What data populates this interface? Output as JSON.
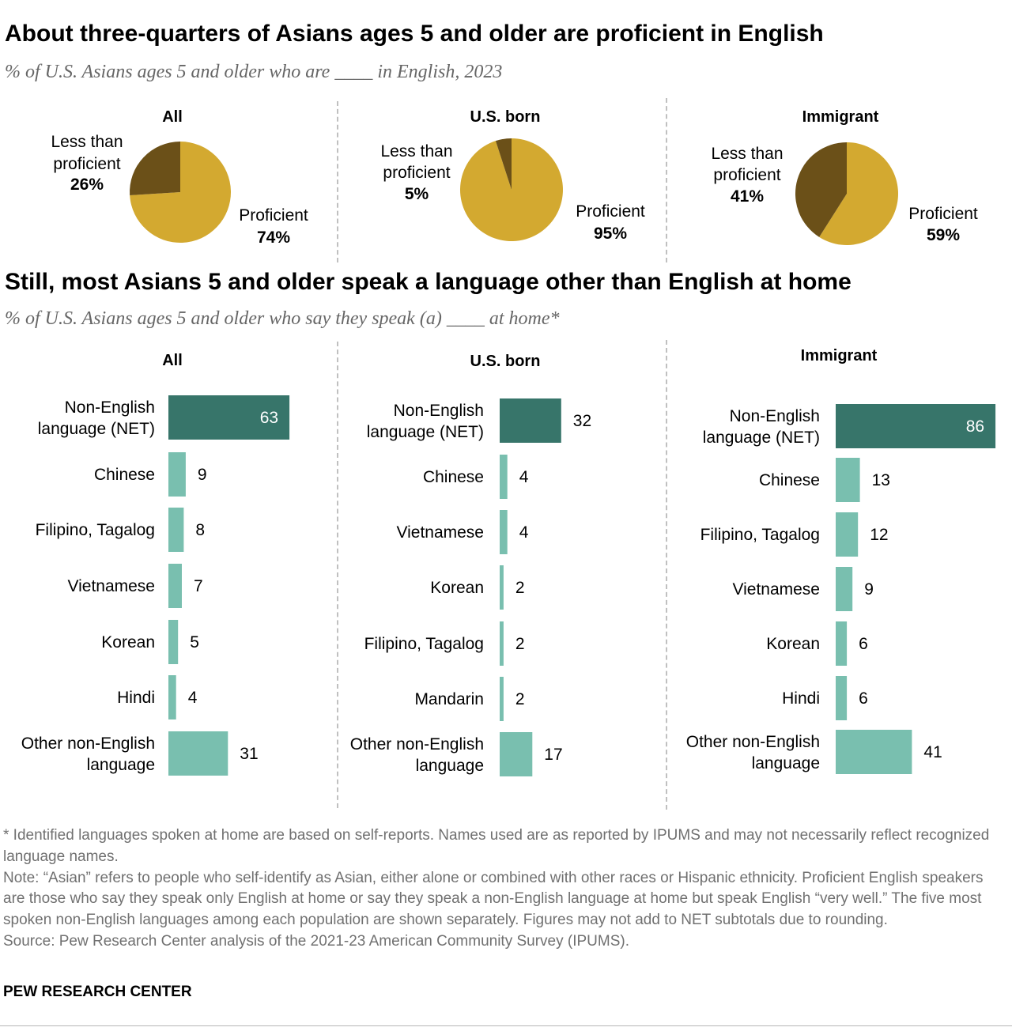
{
  "title1": "About three-quarters of Asians ages 5 and older are proficient in English",
  "subtitle1": "% of U.S. Asians ages 5 and older who are ____ in English, 2023",
  "title2": "Still, most Asians 5 and older speak a language other than English at home",
  "subtitle2": "% of U.S. Asians ages 5 and older who say they speak (a) ____ at home*",
  "footnotes": [
    "* Identified languages spoken at home are based on self-reports. Names used are as reported by IPUMS and may not necessarily reflect recognized language names.",
    "Note: “Asian” refers to people who self-identify as Asian, either alone or combined with other races or Hispanic ethnicity. Proficient English speakers are those who say they speak only English at home or say they speak a non-English language at home but speak English “very well.” The five most spoken non-English languages among each population are shown separately. Figures may not add to NET subtotals due to rounding.",
    "Source: Pew Research Center analysis of the 2021-23 American Community Survey (IPUMS)."
  ],
  "brand": "PEW RESEARCH CENTER",
  "colors": {
    "proficient": "#D3A930",
    "less_proficient": "#6B5018",
    "net_bar": "#37756A",
    "language_bar": "#79BFAF"
  },
  "chart_data": [
    {
      "type": "pie",
      "title": "All",
      "slices": [
        {
          "label": "Proficient",
          "value": 74,
          "display": "74%"
        },
        {
          "label": "Less than proficient",
          "value": 26,
          "display": "26%"
        }
      ]
    },
    {
      "type": "pie",
      "title": "U.S. born",
      "slices": [
        {
          "label": "Proficient",
          "value": 95,
          "display": "95%"
        },
        {
          "label": "Less than proficient",
          "value": 5,
          "display": "5%"
        }
      ]
    },
    {
      "type": "pie",
      "title": "Immigrant",
      "slices": [
        {
          "label": "Proficient",
          "value": 59,
          "display": "59%"
        },
        {
          "label": "Less than proficient",
          "value": 41,
          "display": "41%"
        }
      ]
    },
    {
      "type": "bar",
      "title": "All",
      "categories": [
        "Non-English language (NET)",
        "Chinese",
        "Filipino, Tagalog",
        "Vietnamese",
        "Korean",
        "Hindi",
        "Other non-English language"
      ],
      "values": [
        63,
        9,
        8,
        7,
        5,
        4,
        31
      ]
    },
    {
      "type": "bar",
      "title": "U.S. born",
      "categories": [
        "Non-English language (NET)",
        "Chinese",
        "Vietnamese",
        "Korean",
        "Filipino, Tagalog",
        "Mandarin",
        "Other non-English language"
      ],
      "values": [
        32,
        4,
        4,
        2,
        2,
        2,
        17
      ]
    },
    {
      "type": "bar",
      "title": "Immigrant",
      "categories": [
        "Non-English language (NET)",
        "Chinese",
        "Filipino, Tagalog",
        "Vietnamese",
        "Korean",
        "Hindi",
        "Other non-English language"
      ],
      "values": [
        86,
        13,
        12,
        9,
        6,
        6,
        41
      ]
    }
  ]
}
